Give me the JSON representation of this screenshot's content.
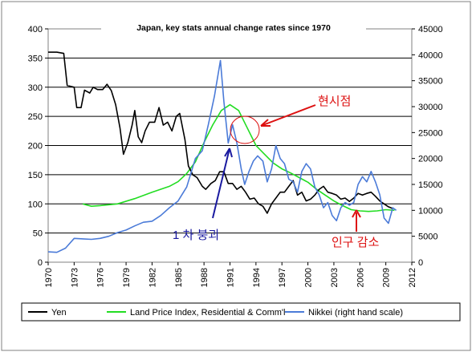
{
  "chart_data": {
    "type": "line",
    "title": "Japan, key stats annual change rates since 1970",
    "xlim": [
      1970,
      2012
    ],
    "x_ticks": [
      "1970",
      "1973",
      "1976",
      "1979",
      "1982",
      "1985",
      "1988",
      "1991",
      "1994",
      "1997",
      "2000",
      "2003",
      "2006",
      "2009",
      "2012"
    ],
    "ylim_left": [
      0,
      400
    ],
    "y_ticks_left": [
      "0",
      "50",
      "100",
      "150",
      "200",
      "250",
      "300",
      "350",
      "400"
    ],
    "ylim_right": [
      0,
      45000
    ],
    "y_ticks_right": [
      "0",
      "5000",
      "10000",
      "15000",
      "20000",
      "25000",
      "30000",
      "35000",
      "40000",
      "45000"
    ],
    "grid": "horizontal",
    "legend_position": "bottom",
    "series": [
      {
        "name": "Yen",
        "color": "#000000",
        "axis": "left",
        "points": [
          [
            1970,
            360
          ],
          [
            1971,
            360
          ],
          [
            1971.8,
            358
          ],
          [
            1972.2,
            303
          ],
          [
            1973,
            300
          ],
          [
            1973.3,
            265
          ],
          [
            1973.8,
            265
          ],
          [
            1974.2,
            295
          ],
          [
            1974.8,
            290
          ],
          [
            1975.2,
            300
          ],
          [
            1975.7,
            296
          ],
          [
            1976.3,
            296
          ],
          [
            1976.8,
            305
          ],
          [
            1977.3,
            294
          ],
          [
            1977.8,
            270
          ],
          [
            1978.3,
            230
          ],
          [
            1978.7,
            185
          ],
          [
            1979.2,
            205
          ],
          [
            1979.7,
            235
          ],
          [
            1980.0,
            260
          ],
          [
            1980.4,
            215
          ],
          [
            1980.8,
            205
          ],
          [
            1981.2,
            225
          ],
          [
            1981.7,
            240
          ],
          [
            1982.3,
            240
          ],
          [
            1982.8,
            265
          ],
          [
            1983.3,
            235
          ],
          [
            1983.8,
            240
          ],
          [
            1984.3,
            225
          ],
          [
            1984.8,
            250
          ],
          [
            1985.2,
            255
          ],
          [
            1985.8,
            210
          ],
          [
            1986.2,
            165
          ],
          [
            1986.7,
            150
          ],
          [
            1987.2,
            145
          ],
          [
            1987.8,
            130
          ],
          [
            1988.2,
            125
          ],
          [
            1988.8,
            135
          ],
          [
            1989.3,
            140
          ],
          [
            1989.8,
            155
          ],
          [
            1990.3,
            155
          ],
          [
            1990.8,
            135
          ],
          [
            1991.3,
            135
          ],
          [
            1991.8,
            125
          ],
          [
            1992.3,
            130
          ],
          [
            1992.8,
            120
          ],
          [
            1993.3,
            108
          ],
          [
            1993.8,
            110
          ],
          [
            1994.3,
            100
          ],
          [
            1994.8,
            96
          ],
          [
            1995.3,
            84
          ],
          [
            1995.8,
            100
          ],
          [
            1996.3,
            110
          ],
          [
            1996.8,
            120
          ],
          [
            1997.3,
            120
          ],
          [
            1997.8,
            130
          ],
          [
            1998.3,
            140
          ],
          [
            1998.8,
            115
          ],
          [
            1999.3,
            120
          ],
          [
            1999.8,
            105
          ],
          [
            2000.3,
            108
          ],
          [
            2000.8,
            115
          ],
          [
            2001.3,
            125
          ],
          [
            2001.8,
            130
          ],
          [
            2002.3,
            120
          ],
          [
            2002.8,
            118
          ],
          [
            2003.3,
            115
          ],
          [
            2003.8,
            108
          ],
          [
            2004.3,
            110
          ],
          [
            2004.8,
            104
          ],
          [
            2005.3,
            110
          ],
          [
            2005.8,
            118
          ],
          [
            2006.3,
            115
          ],
          [
            2006.8,
            118
          ],
          [
            2007.3,
            120
          ],
          [
            2007.8,
            113
          ],
          [
            2008.3,
            105
          ],
          [
            2008.8,
            100
          ],
          [
            2009.3,
            95
          ],
          [
            2009.8,
            92
          ]
        ]
      },
      {
        "name": "Land Price Index, Residential & Comm'l",
        "color": "#22dd22",
        "axis": "left",
        "points": [
          [
            1974,
            100
          ],
          [
            1975,
            96
          ],
          [
            1976,
            97
          ],
          [
            1978,
            100
          ],
          [
            1980,
            109
          ],
          [
            1982,
            120
          ],
          [
            1984,
            130
          ],
          [
            1985,
            138
          ],
          [
            1986,
            152
          ],
          [
            1987,
            172
          ],
          [
            1988,
            205
          ],
          [
            1989,
            235
          ],
          [
            1990,
            260
          ],
          [
            1991,
            270
          ],
          [
            1992,
            260
          ],
          [
            1993,
            230
          ],
          [
            1994,
            200
          ],
          [
            1995,
            185
          ],
          [
            1996,
            170
          ],
          [
            1997,
            160
          ],
          [
            1998,
            153
          ],
          [
            1999,
            145
          ],
          [
            2000,
            137
          ],
          [
            2001,
            125
          ],
          [
            2002,
            115
          ],
          [
            2003,
            105
          ],
          [
            2004,
            97
          ],
          [
            2005,
            90
          ],
          [
            2006,
            88
          ],
          [
            2007,
            87
          ],
          [
            2008,
            88
          ],
          [
            2009,
            90
          ],
          [
            2010,
            89
          ]
        ]
      },
      {
        "name": "Nikkei (right hand scale)",
        "color": "#4b7bd8",
        "axis": "right",
        "points": [
          [
            1970,
            2000
          ],
          [
            1971,
            1900
          ],
          [
            1972,
            2700
          ],
          [
            1973,
            4600
          ],
          [
            1974,
            4500
          ],
          [
            1975,
            4400
          ],
          [
            1976,
            4600
          ],
          [
            1977,
            5000
          ],
          [
            1978,
            5700
          ],
          [
            1979,
            6200
          ],
          [
            1980,
            7000
          ],
          [
            1981,
            7700
          ],
          [
            1982,
            7900
          ],
          [
            1983,
            9000
          ],
          [
            1984,
            10500
          ],
          [
            1985,
            11800
          ],
          [
            1986,
            14500
          ],
          [
            1987,
            20000
          ],
          [
            1987.8,
            21500
          ],
          [
            1988.5,
            26500
          ],
          [
            1989.2,
            32000
          ],
          [
            1989.9,
            38900
          ],
          [
            1990.3,
            31000
          ],
          [
            1990.8,
            23000
          ],
          [
            1991.3,
            26500
          ],
          [
            1991.8,
            23000
          ],
          [
            1992.3,
            18000
          ],
          [
            1992.7,
            15000
          ],
          [
            1993.2,
            17500
          ],
          [
            1993.7,
            19500
          ],
          [
            1994.2,
            20500
          ],
          [
            1994.8,
            19500
          ],
          [
            1995.3,
            15500
          ],
          [
            1995.8,
            18000
          ],
          [
            1996.3,
            22500
          ],
          [
            1996.8,
            20000
          ],
          [
            1997.3,
            19000
          ],
          [
            1997.8,
            16000
          ],
          [
            1998.3,
            15500
          ],
          [
            1998.8,
            13500
          ],
          [
            1999.3,
            17500
          ],
          [
            1999.8,
            19000
          ],
          [
            2000.3,
            18000
          ],
          [
            2000.8,
            14500
          ],
          [
            2001.3,
            13000
          ],
          [
            2001.8,
            10500
          ],
          [
            2002.3,
            11500
          ],
          [
            2002.8,
            9000
          ],
          [
            2003.3,
            8000
          ],
          [
            2003.8,
            10500
          ],
          [
            2004.3,
            11500
          ],
          [
            2004.8,
            11000
          ],
          [
            2005.3,
            11500
          ],
          [
            2005.8,
            15000
          ],
          [
            2006.3,
            16500
          ],
          [
            2006.8,
            15500
          ],
          [
            2007.3,
            17500
          ],
          [
            2007.8,
            15500
          ],
          [
            2008.3,
            13000
          ],
          [
            2008.8,
            8500
          ],
          [
            2009.3,
            7500
          ],
          [
            2009.8,
            10500
          ],
          [
            2010.2,
            10000
          ]
        ]
      }
    ],
    "annotations": [
      {
        "text": "현시점",
        "color": "#dd1111",
        "at": [
          1992,
          218
        ]
      },
      {
        "text": "1 차 붕괴",
        "color": "#1a1aa0",
        "at": [
          1990.5,
          200
        ]
      },
      {
        "text": "인구 감소",
        "color": "#dd1111",
        "at": [
          2005.3,
          95
        ]
      }
    ]
  }
}
